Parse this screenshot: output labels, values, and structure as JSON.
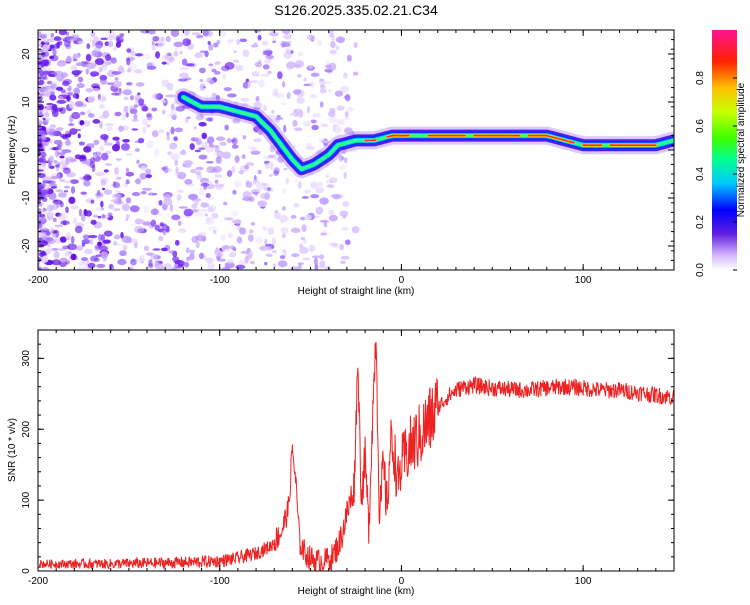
{
  "title": "S126.2025.335.02.21.C34",
  "colors": {
    "signal_line": "#ee2222",
    "axis": "#000000"
  },
  "chart_data": [
    {
      "type": "heatmap",
      "xlabel": "Height of straight line (km)",
      "ylabel": "Frequency (Hz)",
      "xlim": [
        -200,
        150
      ],
      "ylim": [
        -25,
        25
      ],
      "x_ticks": [
        -200,
        -100,
        0,
        100
      ],
      "y_ticks": [
        -20,
        -10,
        0,
        10,
        20
      ],
      "ridge": [
        {
          "x": -120,
          "y": 11
        },
        {
          "x": -110,
          "y": 9
        },
        {
          "x": -100,
          "y": 9
        },
        {
          "x": -90,
          "y": 8
        },
        {
          "x": -80,
          "y": 7
        },
        {
          "x": -72,
          "y": 4
        },
        {
          "x": -66,
          "y": 1
        },
        {
          "x": -60,
          "y": -2
        },
        {
          "x": -55,
          "y": -4
        },
        {
          "x": -48,
          "y": -3
        },
        {
          "x": -40,
          "y": -1
        },
        {
          "x": -35,
          "y": 1
        },
        {
          "x": -25,
          "y": 2
        },
        {
          "x": -15,
          "y": 2
        },
        {
          "x": -5,
          "y": 3
        },
        {
          "x": 5,
          "y": 3
        },
        {
          "x": 20,
          "y": 3
        },
        {
          "x": 40,
          "y": 3
        },
        {
          "x": 60,
          "y": 3
        },
        {
          "x": 80,
          "y": 3
        },
        {
          "x": 100,
          "y": 1
        },
        {
          "x": 120,
          "y": 1
        },
        {
          "x": 140,
          "y": 1
        },
        {
          "x": 150,
          "y": 2
        }
      ],
      "colorbar": {
        "label": "Normalized spectral amplitude",
        "ticks": [
          "0.0",
          "0.2",
          "0.4",
          "0.6",
          "0.8"
        ],
        "range": [
          0,
          1
        ]
      }
    },
    {
      "type": "line",
      "xlabel": "Height of straight line (km)",
      "ylabel": "SNR (10 * v/v)",
      "xlim": [
        -200,
        150
      ],
      "ylim": [
        0,
        340
      ],
      "x_ticks": [
        -200,
        -100,
        0,
        100
      ],
      "y_ticks": [
        0,
        100,
        200,
        300
      ],
      "series": [
        {
          "name": "SNR",
          "x": [
            -200,
            -180,
            -160,
            -140,
            -120,
            -100,
            -90,
            -80,
            -72,
            -66,
            -62,
            -60,
            -58,
            -56,
            -54,
            -52,
            -50,
            -46,
            -42,
            -38,
            -34,
            -30,
            -26,
            -24,
            -22,
            -20,
            -18,
            -16,
            -14,
            -12,
            -10,
            -8,
            -6,
            -4,
            -2,
            0,
            5,
            10,
            15,
            20,
            25,
            30,
            35,
            40,
            50,
            60,
            70,
            80,
            90,
            100,
            110,
            120,
            130,
            140,
            150
          ],
          "values": [
            10,
            10,
            10,
            11,
            12,
            14,
            18,
            25,
            35,
            55,
            90,
            175,
            120,
            40,
            30,
            22,
            18,
            14,
            15,
            20,
            40,
            80,
            120,
            300,
            100,
            160,
            60,
            210,
            340,
            70,
            150,
            90,
            180,
            170,
            120,
            150,
            175,
            190,
            210,
            230,
            245,
            255,
            260,
            262,
            258,
            256,
            255,
            258,
            260,
            258,
            255,
            255,
            252,
            248,
            245
          ]
        }
      ]
    }
  ]
}
